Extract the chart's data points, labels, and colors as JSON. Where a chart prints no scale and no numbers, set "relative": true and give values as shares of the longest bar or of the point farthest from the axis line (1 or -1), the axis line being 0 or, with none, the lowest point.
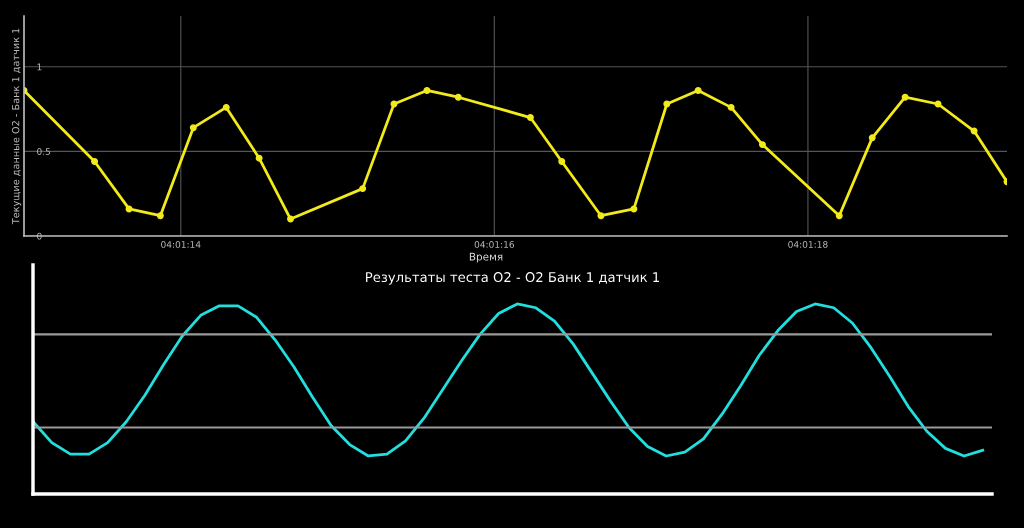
{
  "chart_data": [
    {
      "type": "line",
      "xlabel": "Время",
      "ylabel": "Текущие данные O2 - Банк 1 датчик 1",
      "x": [
        4.0202778,
        4.0204028,
        4.0204639,
        4.0205194,
        4.0205778,
        4.0206361,
        4.0206944,
        4.02075,
        4.0208778,
        4.0209333,
        4.0209917,
        4.0210472,
        4.021175,
        4.0212306,
        4.0213,
        4.0213583,
        4.0214167,
        4.0214722,
        4.0215306,
        4.0215861,
        4.0217222,
        4.0217806,
        4.0218389,
        4.0218972,
        4.0219611,
        4.0220194
      ],
      "series": [
        {
          "color": "#f2ea1a",
          "values": [
            0.86,
            0.44,
            0.16,
            0.12,
            0.64,
            0.76,
            0.46,
            0.1,
            0.28,
            0.78,
            0.86,
            0.82,
            0.7,
            0.44,
            0.12,
            0.16,
            0.78,
            0.86,
            0.76,
            0.54,
            0.12,
            0.58,
            0.82,
            0.78,
            0.62,
            0.32
          ]
        }
      ],
      "xlim": [
        4.0202778,
        4.0220194
      ],
      "xticks": [
        {
          "value": 4.0205556,
          "label": "04:01:14"
        },
        {
          "value": 4.0211111,
          "label": "04:01:16"
        },
        {
          "value": 4.0216667,
          "label": "04:01:18"
        }
      ],
      "ylim": [
        0,
        1.3
      ],
      "yticks": [
        0,
        0.5,
        1
      ],
      "grid": true,
      "marker": "circle",
      "line_style": "solid"
    },
    {
      "type": "line",
      "title": "Результаты теста O2 - O2 Банк 1 датчик 1",
      "relative": true,
      "categories": [
        null,
        null,
        null,
        null,
        null,
        null,
        null,
        null,
        null,
        null,
        null,
        null,
        null,
        null,
        null,
        null,
        null,
        null,
        null,
        null,
        null,
        null,
        null,
        null,
        null,
        null,
        null,
        null,
        null,
        null,
        null,
        null,
        null,
        null,
        null,
        null,
        null,
        null,
        null,
        null,
        null,
        null,
        null,
        null,
        null,
        null,
        null,
        null,
        null,
        null,
        null,
        null
      ],
      "series": [
        {
          "color": "#22dede",
          "values": [
            0.38,
            0.27,
            0.21,
            0.21,
            0.27,
            0.38,
            0.52,
            0.68,
            0.83,
            0.94,
            0.99,
            0.99,
            0.93,
            0.81,
            0.67,
            0.51,
            0.36,
            0.26,
            0.2,
            0.21,
            0.28,
            0.4,
            0.55,
            0.7,
            0.84,
            0.95,
            1.0,
            0.98,
            0.91,
            0.79,
            0.64,
            0.49,
            0.35,
            0.25,
            0.2,
            0.22,
            0.29,
            0.42,
            0.57,
            0.73,
            0.86,
            0.96,
            1.0,
            0.98,
            0.9,
            0.77,
            0.62,
            0.46,
            0.33,
            0.24,
            0.2,
            0.23
          ]
        }
      ],
      "ref_lines": [
        {
          "axis": "y",
          "value": 0.84,
          "color": "#9a9a9a"
        },
        {
          "axis": "y",
          "value": 0.35,
          "color": "#9a9a9a"
        }
      ]
    }
  ]
}
